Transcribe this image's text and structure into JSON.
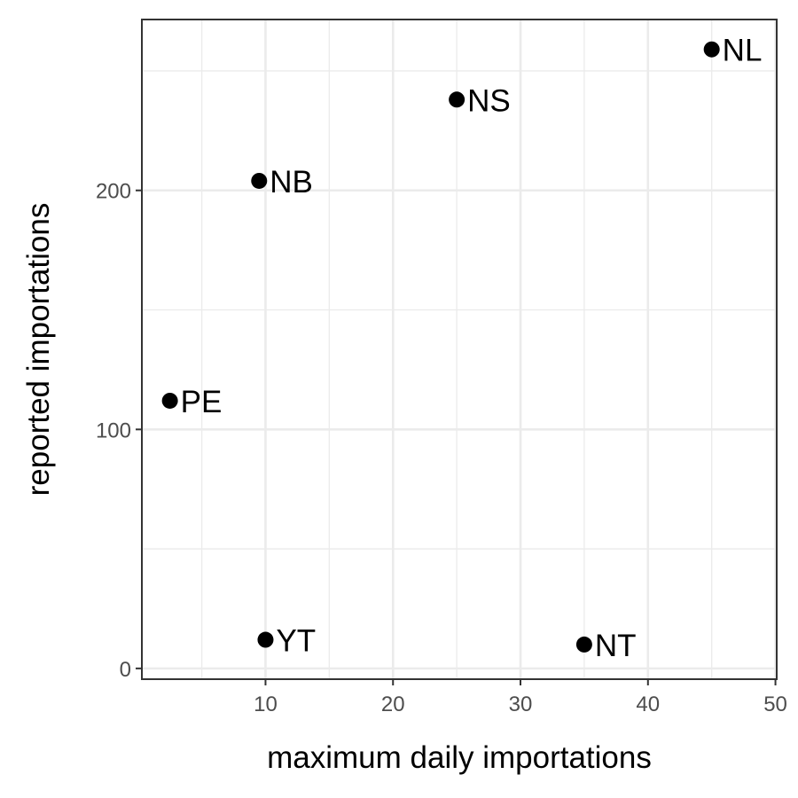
{
  "chart_data": {
    "type": "scatter",
    "xlabel": "maximum daily importations",
    "ylabel": "reported importations",
    "xlim": [
      0.3,
      50.1
    ],
    "ylim": [
      -4.5,
      271.5
    ],
    "x_ticks": [
      10,
      20,
      30,
      40,
      50
    ],
    "y_ticks": [
      0,
      100,
      200
    ],
    "x_tick_labels": [
      "10",
      "20",
      "30",
      "40",
      "50"
    ],
    "y_tick_labels": [
      "0",
      "100",
      "200"
    ],
    "grid": true,
    "legend": "none",
    "colors": {
      "point": "#000000",
      "panel_border": "#333333",
      "grid": "#ebebeb"
    },
    "points": [
      {
        "label": "NL",
        "x": 45.0,
        "y": 259
      },
      {
        "label": "NS",
        "x": 25.0,
        "y": 238
      },
      {
        "label": "NB",
        "x": 9.5,
        "y": 204
      },
      {
        "label": "PE",
        "x": 2.5,
        "y": 112
      },
      {
        "label": "YT",
        "x": 10.0,
        "y": 12
      },
      {
        "label": "NT",
        "x": 35.0,
        "y": 10
      }
    ]
  }
}
